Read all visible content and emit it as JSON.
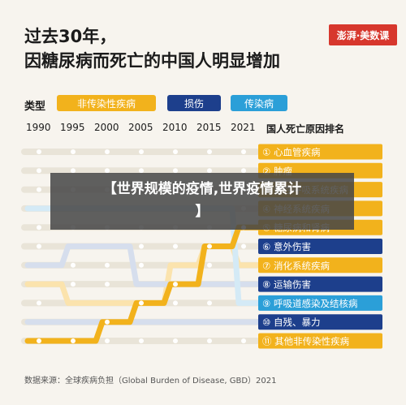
{
  "title": {
    "line1": "过去30年，",
    "line2": "因糖尿病而死亡的中国人明显增加"
  },
  "logo": "澎湃·美数课",
  "legend": {
    "label": "类型",
    "items": [
      {
        "name": "非传染性疾病",
        "color": "#f2b21c"
      },
      {
        "name": "损伤",
        "color": "#1d3f8c"
      },
      {
        "name": "传染病",
        "color": "#2b9fd8"
      }
    ]
  },
  "rank_title": "国人死亡原因排名",
  "source": "数据来源：全球疾病负担（Global Burden of Disease, GBD）2021",
  "overlay_text": [
    "【世界规模的疫情,世界疫情累计",
    "】"
  ],
  "chart_data": {
    "type": "line",
    "title": "因糖尿病而死亡的中国人明显增加",
    "x": [
      "1990",
      "1995",
      "2000",
      "2005",
      "2010",
      "2015",
      "2021"
    ],
    "ylabel": "国人死亡原因排名",
    "y_reversed": true,
    "ylim": [
      1,
      11
    ],
    "ranks": [
      {
        "rank": 1,
        "label": "① 心血管疾病",
        "type": "非传染性疾病",
        "color": "#f2b21c"
      },
      {
        "rank": 2,
        "label": "② 肿瘤",
        "type": "非传染性疾病",
        "color": "#f2b21c"
      },
      {
        "rank": 3,
        "label": "③ 慢性呼吸系统疾病",
        "type": "非传染性疾病",
        "color": "#f2b21c"
      },
      {
        "rank": 4,
        "label": "④ 神经系统疾病",
        "type": "非传染性疾病",
        "color": "#f2b21c"
      },
      {
        "rank": 5,
        "label": "⑤ 糖尿病和肾病",
        "type": "非传染性疾病",
        "color": "#f2b21c"
      },
      {
        "rank": 6,
        "label": "⑥ 意外伤害",
        "type": "损伤",
        "color": "#1d3f8c"
      },
      {
        "rank": 7,
        "label": "⑦ 消化系统疾病",
        "type": "非传染性疾病",
        "color": "#f2b21c"
      },
      {
        "rank": 8,
        "label": "⑧ 运输伤害",
        "type": "损伤",
        "color": "#1d3f8c"
      },
      {
        "rank": 9,
        "label": "⑨ 呼吸道感染及结核病",
        "type": "传染病",
        "color": "#2b9fd8"
      },
      {
        "rank": 10,
        "label": "⑩ 自残、暴力",
        "type": "损伤",
        "color": "#1d3f8c"
      },
      {
        "rank": 11,
        "label": "⑪ 其他非传染性疾病",
        "type": "非传染性疾病",
        "color": "#f2b21c"
      }
    ],
    "series": [
      {
        "type": "非传染性疾病",
        "values": [
          11,
          11,
          10,
          9,
          8,
          6,
          5
        ],
        "color": "#f2b21c"
      },
      {
        "type": "非传染性疾病",
        "values": [
          8,
          9,
          9,
          9,
          7,
          6,
          7
        ],
        "color": "#fbe3ad"
      },
      {
        "type": "损伤",
        "values": [
          7,
          6,
          6,
          8,
          8,
          8,
          8
        ],
        "color": "#d6deed"
      },
      {
        "type": "传染病",
        "values": [
          4,
          4,
          4,
          4,
          4,
          4,
          9
        ],
        "color": "#d4eaf6"
      },
      {
        "type": "损伤",
        "values": [
          10,
          10,
          10,
          10,
          10,
          10,
          10
        ],
        "color": "#d6deed"
      }
    ]
  }
}
